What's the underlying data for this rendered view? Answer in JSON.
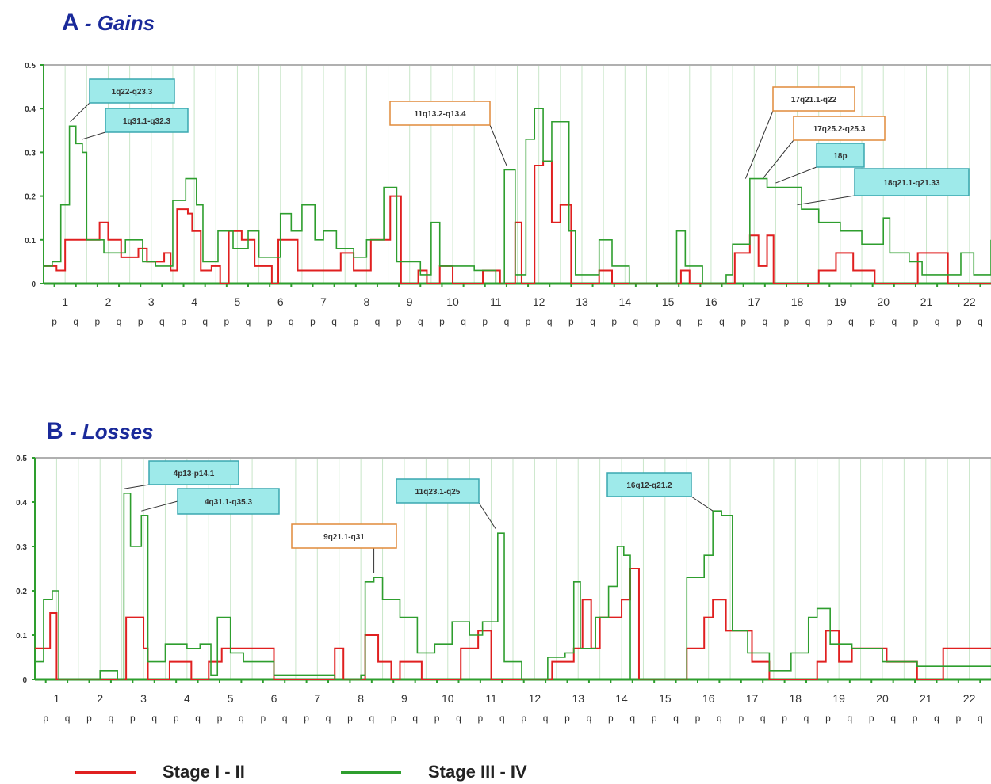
{
  "colors": {
    "stage12": "#e02020",
    "stage34": "#2e9e2e",
    "grid": "#c9e6c9",
    "axis": "#2e9e2e",
    "title": "#1a2a9a",
    "callout_cyan_bg": "#9eeaea",
    "callout_cyan_border": "#3aa7b0",
    "callout_orange_bg": "#ffffff",
    "callout_orange_border": "#e08a3a"
  },
  "legend": {
    "stage12_label": "Stage I - II",
    "stage34_label": "Stage III - IV"
  },
  "chart_data": [
    {
      "type": "line",
      "panel_letter": "A",
      "title": "Gains",
      "ylim": [
        0,
        0.5
      ],
      "yticks": [
        "0",
        "0.1",
        "0.2",
        "0.3",
        "0.4",
        "0.5"
      ],
      "categories": [
        "1",
        "2",
        "3",
        "4",
        "5",
        "6",
        "7",
        "8",
        "9",
        "10",
        "11",
        "12",
        "13",
        "14",
        "15",
        "16",
        "17",
        "18",
        "19",
        "20",
        "21",
        "22"
      ],
      "arm_labels": [
        "p",
        "q"
      ],
      "xlim": [
        0,
        22
      ],
      "grid": true,
      "series": [
        {
          "name": "Stage I - II",
          "color": "#e02020",
          "points": [
            [
              0,
              0.04
            ],
            [
              0.3,
              0.03
            ],
            [
              0.5,
              0.1
            ],
            [
              1.2,
              0.1
            ],
            [
              1.3,
              0.14
            ],
            [
              1.5,
              0.1
            ],
            [
              1.8,
              0.06
            ],
            [
              2.2,
              0.08
            ],
            [
              2.4,
              0.05
            ],
            [
              2.8,
              0.07
            ],
            [
              2.95,
              0.03
            ],
            [
              3.1,
              0.17
            ],
            [
              3.35,
              0.16
            ],
            [
              3.45,
              0.12
            ],
            [
              3.65,
              0.03
            ],
            [
              3.9,
              0.04
            ],
            [
              4.1,
              0.0
            ],
            [
              4.3,
              0.12
            ],
            [
              4.6,
              0.1
            ],
            [
              4.9,
              0.04
            ],
            [
              5.3,
              0.0
            ],
            [
              5.45,
              0.1
            ],
            [
              5.9,
              0.03
            ],
            [
              6.4,
              0.03
            ],
            [
              6.9,
              0.07
            ],
            [
              7.2,
              0.03
            ],
            [
              7.6,
              0.1
            ],
            [
              8.05,
              0.2
            ],
            [
              8.3,
              0.0
            ],
            [
              8.7,
              0.03
            ],
            [
              8.9,
              0.0
            ],
            [
              9.2,
              0.04
            ],
            [
              9.5,
              0.0
            ],
            [
              10.2,
              0.03
            ],
            [
              10.6,
              0.0
            ],
            [
              10.95,
              0.14
            ],
            [
              11.1,
              0.0
            ],
            [
              11.4,
              0.27
            ],
            [
              11.6,
              0.28
            ],
            [
              11.8,
              0.14
            ],
            [
              12.0,
              0.18
            ],
            [
              12.25,
              0.0
            ],
            [
              12.9,
              0.03
            ],
            [
              13.2,
              0.0
            ],
            [
              14.8,
              0.03
            ],
            [
              15.0,
              0.0
            ],
            [
              16.05,
              0.07
            ],
            [
              16.4,
              0.11
            ],
            [
              16.6,
              0.04
            ],
            [
              16.8,
              0.11
            ],
            [
              16.95,
              0.0
            ],
            [
              18.0,
              0.03
            ],
            [
              18.4,
              0.07
            ],
            [
              18.8,
              0.03
            ],
            [
              19.3,
              0.0
            ],
            [
              19.6,
              0.0
            ],
            [
              20.3,
              0.07
            ],
            [
              21.0,
              0.0
            ],
            [
              22.0,
              0.0
            ]
          ]
        },
        {
          "name": "Stage III - IV",
          "color": "#2e9e2e",
          "points": [
            [
              0,
              0.04
            ],
            [
              0.2,
              0.05
            ],
            [
              0.4,
              0.18
            ],
            [
              0.6,
              0.36
            ],
            [
              0.75,
              0.32
            ],
            [
              0.9,
              0.3
            ],
            [
              1.0,
              0.1
            ],
            [
              1.4,
              0.07
            ],
            [
              1.9,
              0.1
            ],
            [
              2.3,
              0.05
            ],
            [
              2.6,
              0.04
            ],
            [
              3.0,
              0.19
            ],
            [
              3.3,
              0.24
            ],
            [
              3.55,
              0.18
            ],
            [
              3.7,
              0.05
            ],
            [
              4.05,
              0.12
            ],
            [
              4.4,
              0.08
            ],
            [
              4.75,
              0.12
            ],
            [
              5.0,
              0.06
            ],
            [
              5.5,
              0.16
            ],
            [
              5.75,
              0.12
            ],
            [
              6.0,
              0.18
            ],
            [
              6.3,
              0.1
            ],
            [
              6.5,
              0.12
            ],
            [
              6.8,
              0.08
            ],
            [
              7.2,
              0.06
            ],
            [
              7.5,
              0.1
            ],
            [
              7.9,
              0.22
            ],
            [
              8.2,
              0.05
            ],
            [
              8.5,
              0.05
            ],
            [
              8.75,
              0.02
            ],
            [
              9.0,
              0.14
            ],
            [
              9.2,
              0.04
            ],
            [
              9.6,
              0.04
            ],
            [
              10.0,
              0.03
            ],
            [
              10.5,
              0.0
            ],
            [
              10.7,
              0.26
            ],
            [
              10.95,
              0.02
            ],
            [
              11.2,
              0.33
            ],
            [
              11.4,
              0.4
            ],
            [
              11.6,
              0.28
            ],
            [
              11.8,
              0.37
            ],
            [
              12.2,
              0.12
            ],
            [
              12.35,
              0.02
            ],
            [
              12.9,
              0.1
            ],
            [
              13.2,
              0.04
            ],
            [
              13.6,
              0.0
            ],
            [
              14.2,
              0.0
            ],
            [
              14.7,
              0.12
            ],
            [
              14.9,
              0.04
            ],
            [
              15.3,
              0.0
            ],
            [
              15.85,
              0.02
            ],
            [
              16.0,
              0.09
            ],
            [
              16.4,
              0.24
            ],
            [
              16.6,
              0.24
            ],
            [
              16.8,
              0.22
            ],
            [
              17.1,
              0.22
            ],
            [
              17.6,
              0.17
            ],
            [
              18.0,
              0.14
            ],
            [
              18.5,
              0.12
            ],
            [
              19.0,
              0.09
            ],
            [
              19.3,
              0.09
            ],
            [
              19.5,
              0.15
            ],
            [
              19.65,
              0.07
            ],
            [
              20.1,
              0.05
            ],
            [
              20.4,
              0.02
            ],
            [
              21.0,
              0.02
            ],
            [
              21.3,
              0.07
            ],
            [
              21.6,
              0.02
            ],
            [
              22.0,
              0.1
            ]
          ]
        }
      ],
      "annotations": [
        {
          "text": "1q22-q23.3",
          "style": "cyan",
          "x": 0.62,
          "y": 0.37
        },
        {
          "text": "1q31.1-q32.3",
          "style": "cyan",
          "x": 0.9,
          "y": 0.33
        },
        {
          "text": "11q13.2-q13.4",
          "style": "orange",
          "x": 10.75,
          "y": 0.27
        },
        {
          "text": "17q21.1-q22",
          "style": "orange",
          "x": 16.3,
          "y": 0.24
        },
        {
          "text": "17q25.2-q25.3",
          "style": "orange",
          "x": 16.7,
          "y": 0.24
        },
        {
          "text": "18p",
          "style": "cyan",
          "x": 17.0,
          "y": 0.23
        },
        {
          "text": "18q21.1-q21.33",
          "style": "cyan",
          "x": 17.5,
          "y": 0.18
        }
      ]
    },
    {
      "type": "line",
      "panel_letter": "B",
      "title": "Losses",
      "ylim": [
        0,
        0.5
      ],
      "yticks": [
        "0",
        "0.1",
        "0.2",
        "0.3",
        "0.4",
        "0.5"
      ],
      "categories": [
        "1",
        "2",
        "3",
        "4",
        "5",
        "6",
        "7",
        "8",
        "9",
        "10",
        "11",
        "12",
        "13",
        "14",
        "15",
        "16",
        "17",
        "18",
        "19",
        "20",
        "21",
        "22"
      ],
      "arm_labels": [
        "p",
        "q"
      ],
      "xlim": [
        0,
        22
      ],
      "grid": true,
      "series": [
        {
          "name": "Stage I - II",
          "color": "#e02020",
          "points": [
            [
              0,
              0.07
            ],
            [
              0.35,
              0.15
            ],
            [
              0.5,
              0.0
            ],
            [
              2.0,
              0.0
            ],
            [
              2.1,
              0.14
            ],
            [
              2.5,
              0.07
            ],
            [
              2.6,
              0.0
            ],
            [
              3.1,
              0.04
            ],
            [
              3.6,
              0.0
            ],
            [
              4.0,
              0.04
            ],
            [
              4.3,
              0.07
            ],
            [
              4.5,
              0.07
            ],
            [
              5.5,
              0.0
            ],
            [
              6.9,
              0.07
            ],
            [
              7.1,
              0.0
            ],
            [
              7.6,
              0.1
            ],
            [
              7.9,
              0.04
            ],
            [
              8.2,
              0.0
            ],
            [
              8.4,
              0.04
            ],
            [
              8.9,
              0.0
            ],
            [
              9.8,
              0.07
            ],
            [
              10.2,
              0.11
            ],
            [
              10.5,
              0.0
            ],
            [
              11.9,
              0.04
            ],
            [
              12.4,
              0.07
            ],
            [
              12.6,
              0.18
            ],
            [
              12.8,
              0.07
            ],
            [
              13.0,
              0.14
            ],
            [
              13.5,
              0.18
            ],
            [
              13.7,
              0.25
            ],
            [
              13.9,
              0.0
            ],
            [
              15.0,
              0.07
            ],
            [
              15.4,
              0.14
            ],
            [
              15.6,
              0.18
            ],
            [
              15.9,
              0.11
            ],
            [
              16.2,
              0.11
            ],
            [
              16.5,
              0.04
            ],
            [
              16.9,
              0.0
            ],
            [
              18.0,
              0.04
            ],
            [
              18.2,
              0.11
            ],
            [
              18.5,
              0.04
            ],
            [
              18.8,
              0.07
            ],
            [
              19.4,
              0.07
            ],
            [
              19.6,
              0.04
            ],
            [
              20.3,
              0.0
            ],
            [
              20.9,
              0.07
            ],
            [
              22.0,
              0.07
            ]
          ]
        },
        {
          "name": "Stage III - IV",
          "color": "#2e9e2e",
          "points": [
            [
              0,
              0.04
            ],
            [
              0.2,
              0.18
            ],
            [
              0.4,
              0.2
            ],
            [
              0.55,
              0.0
            ],
            [
              1.5,
              0.02
            ],
            [
              1.9,
              0.0
            ],
            [
              2.05,
              0.42
            ],
            [
              2.2,
              0.3
            ],
            [
              2.45,
              0.37
            ],
            [
              2.6,
              0.04
            ],
            [
              3.0,
              0.08
            ],
            [
              3.5,
              0.07
            ],
            [
              3.8,
              0.08
            ],
            [
              4.05,
              0.01
            ],
            [
              4.2,
              0.14
            ],
            [
              4.5,
              0.06
            ],
            [
              4.8,
              0.04
            ],
            [
              5.5,
              0.01
            ],
            [
              6.0,
              0.01
            ],
            [
              6.9,
              0.0
            ],
            [
              7.5,
              0.01
            ],
            [
              7.6,
              0.22
            ],
            [
              7.8,
              0.23
            ],
            [
              8.0,
              0.18
            ],
            [
              8.4,
              0.14
            ],
            [
              8.8,
              0.06
            ],
            [
              9.2,
              0.08
            ],
            [
              9.6,
              0.13
            ],
            [
              10.0,
              0.1
            ],
            [
              10.3,
              0.13
            ],
            [
              10.65,
              0.33
            ],
            [
              10.8,
              0.04
            ],
            [
              11.2,
              0.0
            ],
            [
              11.8,
              0.05
            ],
            [
              12.2,
              0.06
            ],
            [
              12.4,
              0.22
            ],
            [
              12.55,
              0.07
            ],
            [
              12.9,
              0.14
            ],
            [
              13.2,
              0.21
            ],
            [
              13.4,
              0.3
            ],
            [
              13.55,
              0.28
            ],
            [
              13.7,
              0.0
            ],
            [
              14.6,
              0.0
            ],
            [
              15.0,
              0.23
            ],
            [
              15.4,
              0.28
            ],
            [
              15.6,
              0.38
            ],
            [
              15.8,
              0.37
            ],
            [
              16.05,
              0.11
            ],
            [
              16.4,
              0.06
            ],
            [
              16.9,
              0.02
            ],
            [
              17.4,
              0.06
            ],
            [
              17.8,
              0.14
            ],
            [
              18.0,
              0.16
            ],
            [
              18.3,
              0.08
            ],
            [
              18.8,
              0.07
            ],
            [
              19.5,
              0.04
            ],
            [
              20.3,
              0.03
            ],
            [
              21.0,
              0.03
            ],
            [
              22.0,
              0.03
            ]
          ]
        }
      ],
      "annotations": [
        {
          "text": "4p13-p14.1",
          "style": "cyan",
          "x": 2.05,
          "y": 0.43
        },
        {
          "text": "4q31.1-q35.3",
          "style": "cyan",
          "x": 2.45,
          "y": 0.38
        },
        {
          "text": "9q21.1-q31",
          "style": "orange",
          "x": 7.8,
          "y": 0.24
        },
        {
          "text": "11q23.1-q25",
          "style": "cyan",
          "x": 10.6,
          "y": 0.34
        },
        {
          "text": "16q12-q21.2",
          "style": "cyan",
          "x": 15.6,
          "y": 0.38
        }
      ]
    }
  ]
}
